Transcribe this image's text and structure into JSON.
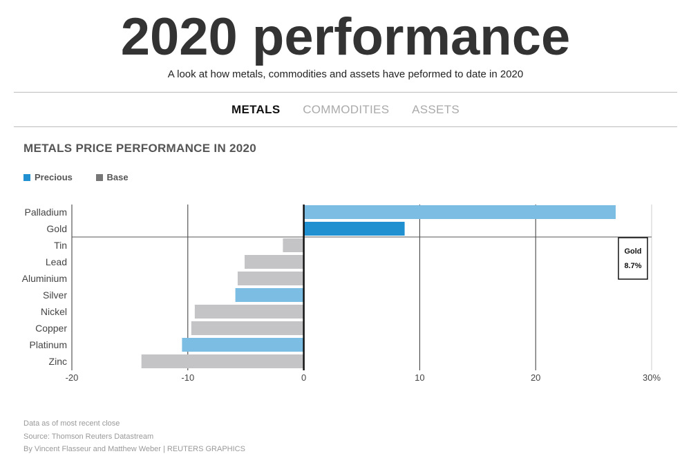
{
  "header": {
    "title": "2020 performance",
    "subtitle": "A look at how metals, commodities and assets have peformed to date in 2020"
  },
  "tabs": [
    {
      "label": "METALS",
      "active": true
    },
    {
      "label": "COMMODITIES",
      "active": false
    },
    {
      "label": "ASSETS",
      "active": false
    }
  ],
  "colors": {
    "precious": "#7bbde3",
    "precious_highlight": "#2190d0",
    "base": "#c4c4c6",
    "legend_precious": "#2190d0",
    "legend_base": "#777777"
  },
  "chart_data": {
    "type": "bar",
    "orientation": "horizontal",
    "title": "METALS PRICE PERFORMANCE IN 2020",
    "legend": [
      {
        "name": "Precious",
        "color": "#2190d0"
      },
      {
        "name": "Base",
        "color": "#777777"
      }
    ],
    "legend_position": "top-left",
    "xlim": [
      -20,
      30
    ],
    "x_ticks": [
      {
        "value": -20,
        "label": "-20"
      },
      {
        "value": -10,
        "label": "-10"
      },
      {
        "value": 0,
        "label": "0"
      },
      {
        "value": 10,
        "label": "10"
      },
      {
        "value": 20,
        "label": "20"
      },
      {
        "value": 30,
        "label": "30%"
      }
    ],
    "grid": true,
    "highlighted": "Gold",
    "bars": [
      {
        "name": "Palladium",
        "value": 26.9,
        "group": "Precious"
      },
      {
        "name": "Gold",
        "value": 8.7,
        "group": "Precious"
      },
      {
        "name": "Tin",
        "value": -1.8,
        "group": "Base"
      },
      {
        "name": "Lead",
        "value": -5.1,
        "group": "Base"
      },
      {
        "name": "Aluminium",
        "value": -5.7,
        "group": "Base"
      },
      {
        "name": "Silver",
        "value": -5.9,
        "group": "Precious"
      },
      {
        "name": "Nickel",
        "value": -9.4,
        "group": "Base"
      },
      {
        "name": "Copper",
        "value": -9.7,
        "group": "Base"
      },
      {
        "name": "Platinum",
        "value": -10.5,
        "group": "Precious"
      },
      {
        "name": "Zinc",
        "value": -14.0,
        "group": "Base"
      }
    ],
    "tooltip": {
      "name": "Gold",
      "value_label": "8.7%"
    }
  },
  "footer": {
    "line1": "Data as of most recent close",
    "line2": "Source: Thomson Reuters Datastream",
    "line3": "By Vincent Flasseur and Matthew Weber | REUTERS GRAPHICS"
  }
}
